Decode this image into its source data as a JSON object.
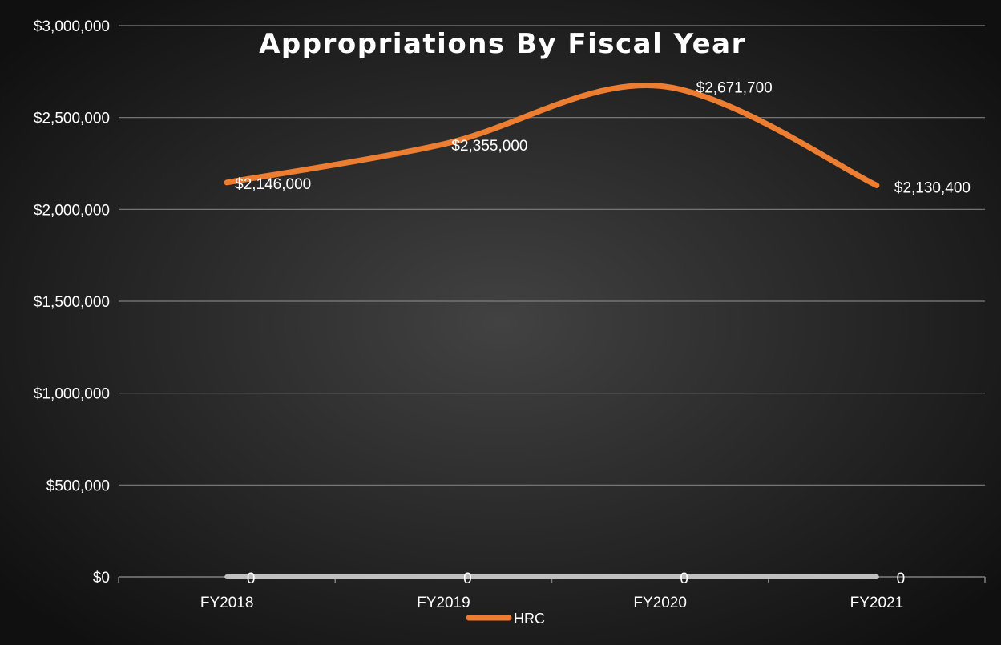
{
  "chart_data": {
    "type": "line",
    "title": "Appropriations By Fiscal Year",
    "xlabel": "",
    "ylabel": "",
    "categories": [
      "FY2018",
      "FY2019",
      "FY2020",
      "FY2021"
    ],
    "ylim": [
      0,
      3000000
    ],
    "y_ticks": [
      0,
      500000,
      1000000,
      1500000,
      2000000,
      2500000,
      3000000
    ],
    "y_tick_labels": [
      "$0",
      "$500,000",
      "$1,000,000",
      "$1,500,000",
      "$2,000,000",
      "$2,500,000",
      "$3,000,000"
    ],
    "grid": true,
    "legend_position": "bottom",
    "series": [
      {
        "name": "HRC",
        "values": [
          2146000,
          2355000,
          2671700,
          2130400
        ],
        "data_labels": [
          "$2,146,000",
          "$2,355,000",
          "$2,671,700",
          "$2,130,400"
        ],
        "color": "#ED7D31",
        "smooth": true
      },
      {
        "values": [
          0,
          0,
          0,
          0
        ],
        "data_labels": [
          "0",
          "0",
          "0",
          "0"
        ],
        "color": "#BFBFBF"
      }
    ]
  },
  "colors": {
    "background_center": "#424242",
    "background_edge": "#101010",
    "gridline": "#7F7F7F",
    "text": "#FFFFFF"
  }
}
